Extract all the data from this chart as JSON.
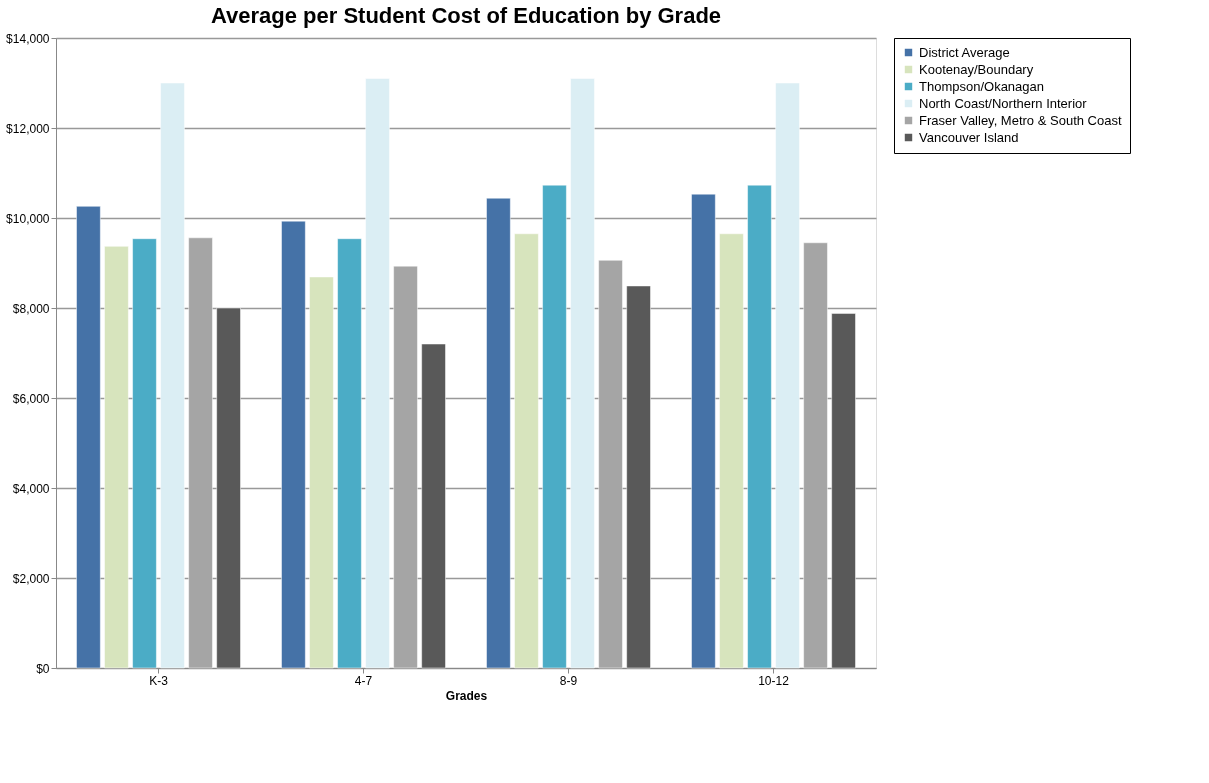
{
  "chart_data": {
    "type": "bar",
    "title": "Average per Student Cost of Education by Grade",
    "xlabel": "Grades",
    "categories": [
      "K-3",
      "4-7",
      "8-9",
      "10-12"
    ],
    "series": [
      {
        "name": "District Average",
        "color": "#4572a7",
        "values": [
          10260,
          9930,
          10440,
          10530
        ]
      },
      {
        "name": "Kootenay/Boundary",
        "color": "#d7e4bd",
        "values": [
          9370,
          8690,
          9650,
          9650
        ]
      },
      {
        "name": "Thompson/Okanagan",
        "color": "#4bacc6",
        "values": [
          9540,
          9540,
          10730,
          10730
        ]
      },
      {
        "name": "North Coast/Northern Interior",
        "color": "#dbeef4",
        "values": [
          13000,
          13100,
          13100,
          13000
        ]
      },
      {
        "name": "Fraser Valley, Metro & South Coast",
        "color": "#a5a5a5",
        "values": [
          9560,
          8930,
          9060,
          9450
        ]
      },
      {
        "name": "Vancouver Island",
        "color": "#595959",
        "values": [
          8000,
          7200,
          8490,
          7880
        ]
      }
    ],
    "ylim": [
      0,
      14000
    ],
    "yticks": [
      {
        "value": 0,
        "label": "$0"
      },
      {
        "value": 2000,
        "label": "$2,000"
      },
      {
        "value": 4000,
        "label": "$4,000"
      },
      {
        "value": 6000,
        "label": "$6,000"
      },
      {
        "value": 8000,
        "label": "$8,000"
      },
      {
        "value": 10000,
        "label": "$10,000"
      },
      {
        "value": 12000,
        "label": "$12,000"
      },
      {
        "value": 14000,
        "label": "$14,000"
      }
    ],
    "grid": "y",
    "legend": "right"
  }
}
